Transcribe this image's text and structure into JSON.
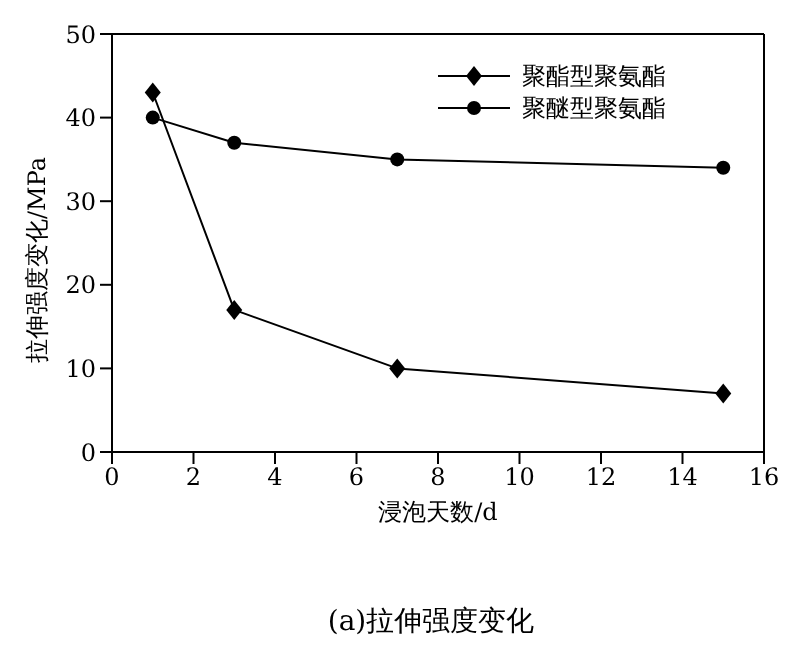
{
  "chart_data": {
    "type": "line",
    "xlabel": "浸泡天数/d",
    "ylabel": "拉伸强度变化/MPa",
    "annotations": [
      "(a)拉伸强度变化"
    ],
    "x": [
      1,
      3,
      7,
      15
    ],
    "series": [
      {
        "name": "聚酯型聚氨酯",
        "color": "#000000",
        "marker": "diamond",
        "values": [
          43,
          17,
          10,
          7
        ]
      },
      {
        "name": "聚醚型聚氨酯",
        "color": "#000000",
        "marker": "circle",
        "values": [
          40,
          37,
          35,
          34
        ]
      }
    ],
    "xlim": [
      0,
      16
    ],
    "xticks": [
      0,
      2,
      4,
      6,
      8,
      10,
      12,
      14,
      16
    ],
    "ylim": [
      0,
      50
    ],
    "yticks": [
      0,
      10,
      20,
      30,
      40,
      50
    ],
    "grid": false,
    "legend": "top right",
    "line_style": "solid"
  }
}
